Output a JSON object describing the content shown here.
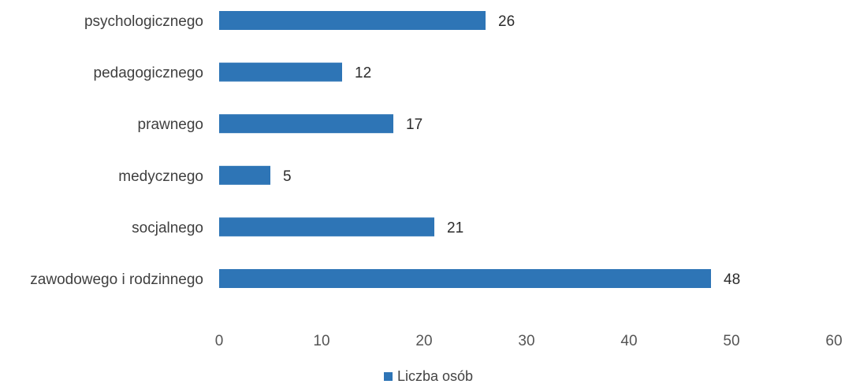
{
  "chart_data": {
    "type": "bar",
    "orientation": "horizontal",
    "categories": [
      "psychologicznego",
      "pedagogicznego",
      "prawnego",
      "medycznego",
      "socjalnego",
      "zawodowego i rodzinnego"
    ],
    "series": [
      {
        "name": "Liczba osób",
        "values": [
          26,
          12,
          17,
          5,
          21,
          48
        ],
        "color": "#2e75b6"
      }
    ],
    "xlim": [
      0,
      60
    ],
    "xticks": [
      0,
      10,
      20,
      30,
      40,
      50,
      60
    ],
    "grid": false,
    "data_labels": true,
    "legend": {
      "position": "bottom",
      "entries": [
        "Liczba osób"
      ]
    }
  }
}
